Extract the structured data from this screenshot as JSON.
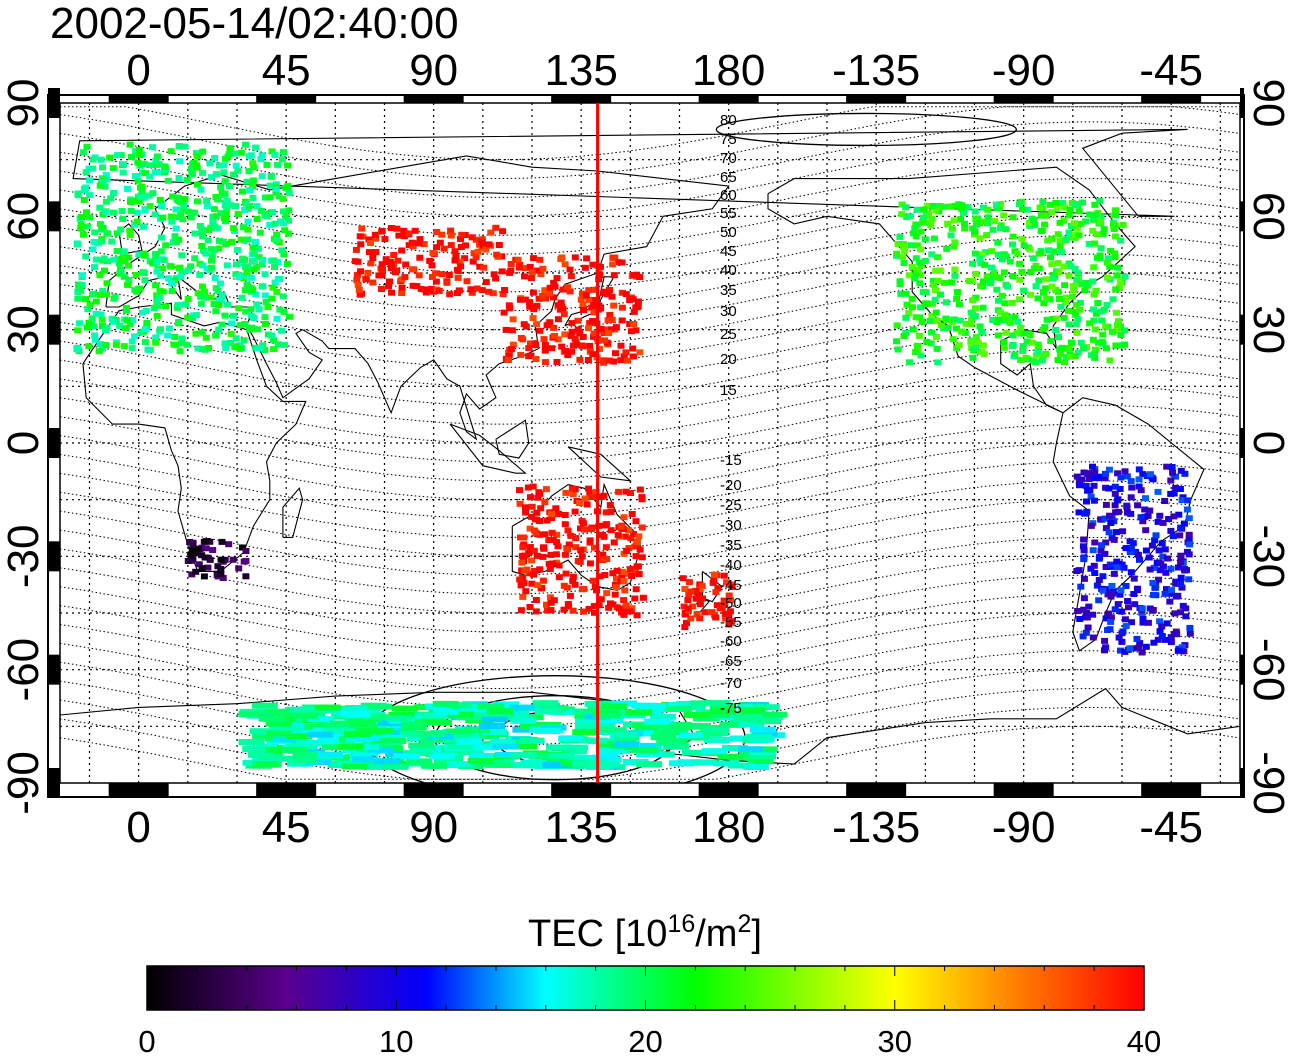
{
  "header": {
    "timestamp": "2002-05-14/02:40:00"
  },
  "map": {
    "lon_ticks": [
      "0",
      "45",
      "90",
      "135",
      "180",
      "-135",
      "-90",
      "-45"
    ],
    "lon_values": [
      0,
      45,
      90,
      135,
      180,
      225,
      270,
      315
    ],
    "lat_ticks": [
      "90",
      "60",
      "30",
      "0",
      "-30",
      "-60",
      "-90"
    ],
    "lat_values": [
      90,
      60,
      30,
      0,
      -30,
      -60,
      -90
    ],
    "lon_range": [
      -24,
      336
    ],
    "lat_range": [
      -90,
      90
    ],
    "meridian_line": {
      "lon": 140,
      "color": "#ff0000"
    },
    "maglat_labels_north": [
      "80",
      "75",
      "70",
      "65",
      "60",
      "55",
      "50",
      "45",
      "40",
      "35",
      "30",
      "25",
      "20",
      "15"
    ],
    "maglat_labels_south": [
      "-15",
      "-20",
      "-25",
      "-30",
      "-35",
      "-40",
      "-45",
      "-50",
      "-55",
      "-60",
      "-65",
      "-70",
      "-75"
    ]
  },
  "colorbar": {
    "title_prefix": "TEC  [10",
    "title_sup1": "16",
    "title_mid": "/m",
    "title_sup2": "2",
    "title_suffix": "]",
    "ticks": [
      "0",
      "10",
      "20",
      "30",
      "40"
    ],
    "min": 0,
    "max": 40,
    "colors": [
      "#000000",
      "#5a008c",
      "#0000ff",
      "#00ffff",
      "#00ff00",
      "#ffff00",
      "#ff8000",
      "#ff0000"
    ]
  },
  "tec_regions": [
    {
      "name": "europe",
      "lon": [
        -20,
        45
      ],
      "lat": [
        25,
        80
      ],
      "tec": 20
    },
    {
      "name": "north-america",
      "lon": [
        -130,
        -60
      ],
      "lat": [
        22,
        65
      ],
      "tec": 22
    },
    {
      "name": "japan-east-asia",
      "lon": [
        110,
        152
      ],
      "lat": [
        22,
        50
      ],
      "tec": 40
    },
    {
      "name": "siberia",
      "lon": [
        65,
        110
      ],
      "lat": [
        40,
        58
      ],
      "tec": 40
    },
    {
      "name": "australia",
      "lon": [
        115,
        153
      ],
      "lat": [
        -45,
        -10
      ],
      "tec": 40
    },
    {
      "name": "new-zealand",
      "lon": [
        165,
        180
      ],
      "lat": [
        -48,
        -34
      ],
      "tec": 40
    },
    {
      "name": "south-africa",
      "lon": [
        14,
        32
      ],
      "lat": [
        -35,
        -25
      ],
      "tec": 3
    },
    {
      "name": "south-america",
      "lon": [
        -75,
        -40
      ],
      "lat": [
        -55,
        -5
      ],
      "tec": 10
    },
    {
      "name": "antarctica",
      "lon": [
        30,
        190
      ],
      "lat": [
        -85,
        -68
      ],
      "tec": 18
    }
  ]
}
